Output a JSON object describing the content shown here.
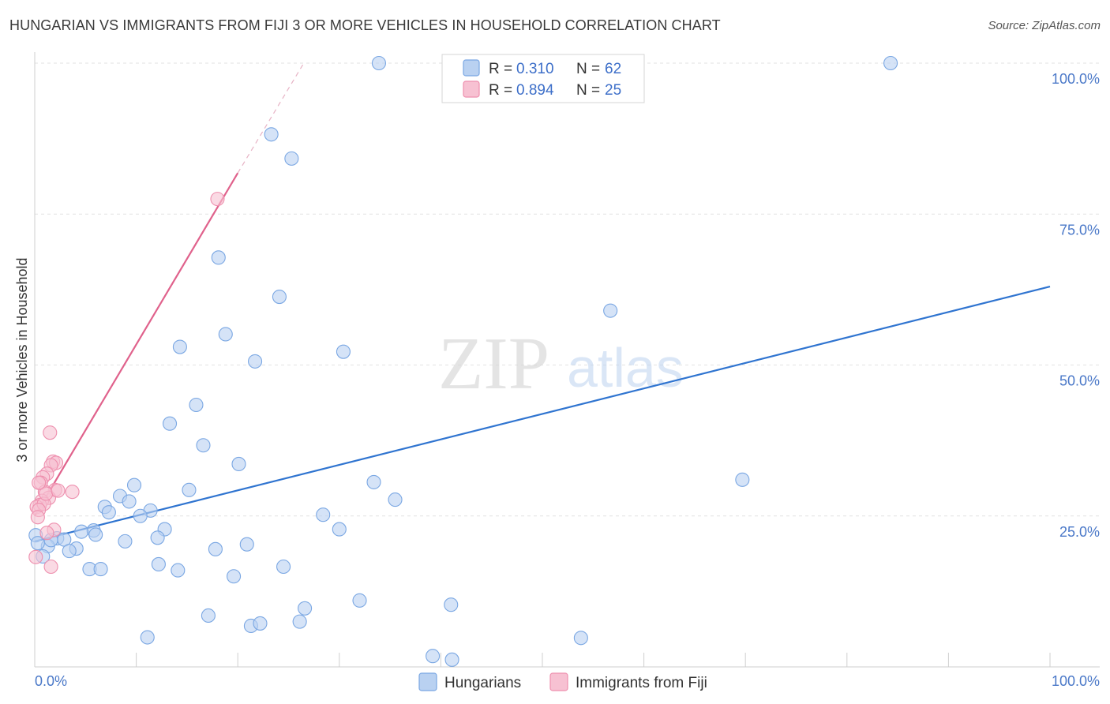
{
  "header": {
    "title": "HUNGARIAN VS IMMIGRANTS FROM FIJI 3 OR MORE VEHICLES IN HOUSEHOLD CORRELATION CHART",
    "source": "Source: ZipAtlas.com"
  },
  "watermark": {
    "zip": "ZIP",
    "atlas": "atlas"
  },
  "chart_data": {
    "type": "scatter",
    "title": "HUNGARIAN VS IMMIGRANTS FROM FIJI 3 OR MORE VEHICLES IN HOUSEHOLD CORRELATION CHART",
    "xlabel": "",
    "ylabel": "3 or more Vehicles in Household",
    "xlim": [
      0,
      1
    ],
    "ylim": [
      0,
      1
    ],
    "x_tick_labels": {
      "left": "0.0%",
      "right": "100.0%"
    },
    "y_ticks": [
      {
        "value": 0.25,
        "label": "25.0%"
      },
      {
        "value": 0.5,
        "label": "50.0%"
      },
      {
        "value": 0.75,
        "label": "75.0%"
      },
      {
        "value": 1.0,
        "label": "100.0%"
      }
    ],
    "grid": true,
    "legend": {
      "placement": "top-center",
      "entries": [
        {
          "r_label": "R =",
          "r_value": "0.310",
          "n_label": "N =",
          "n_value": "62"
        },
        {
          "r_label": "R =",
          "r_value": "0.894",
          "n_label": "N =",
          "n_value": "25"
        }
      ]
    },
    "series": [
      {
        "name": "Hungarians",
        "color": "#7aa7e3",
        "fill": "#b9d1f1",
        "trend_color": "#2f74d0",
        "trend": {
          "x0": 0.0,
          "y0": 0.208,
          "x1": 1.0,
          "y1": 0.63
        },
        "points": [
          [
            0.339,
            1.0
          ],
          [
            0.843,
            1.0
          ],
          [
            0.233,
            0.882
          ],
          [
            0.253,
            0.842
          ],
          [
            0.181,
            0.678
          ],
          [
            0.241,
            0.613
          ],
          [
            0.567,
            0.59
          ],
          [
            0.188,
            0.551
          ],
          [
            0.143,
            0.53
          ],
          [
            0.304,
            0.522
          ],
          [
            0.217,
            0.506
          ],
          [
            0.159,
            0.434
          ],
          [
            0.133,
            0.403
          ],
          [
            0.166,
            0.367
          ],
          [
            0.201,
            0.336
          ],
          [
            0.697,
            0.31
          ],
          [
            0.334,
            0.306
          ],
          [
            0.098,
            0.301
          ],
          [
            0.152,
            0.293
          ],
          [
            0.355,
            0.277
          ],
          [
            0.084,
            0.283
          ],
          [
            0.093,
            0.274
          ],
          [
            0.069,
            0.265
          ],
          [
            0.073,
            0.256
          ],
          [
            0.114,
            0.259
          ],
          [
            0.104,
            0.25
          ],
          [
            0.284,
            0.252
          ],
          [
            0.128,
            0.228
          ],
          [
            0.058,
            0.226
          ],
          [
            0.046,
            0.224
          ],
          [
            0.121,
            0.214
          ],
          [
            0.022,
            0.213
          ],
          [
            0.029,
            0.211
          ],
          [
            0.089,
            0.208
          ],
          [
            0.209,
            0.203
          ],
          [
            0.041,
            0.196
          ],
          [
            0.178,
            0.195
          ],
          [
            0.034,
            0.192
          ],
          [
            0.3,
            0.228
          ],
          [
            0.013,
            0.2
          ],
          [
            0.008,
            0.183
          ],
          [
            0.122,
            0.17
          ],
          [
            0.054,
            0.162
          ],
          [
            0.141,
            0.16
          ],
          [
            0.245,
            0.166
          ],
          [
            0.065,
            0.162
          ],
          [
            0.196,
            0.15
          ],
          [
            0.32,
            0.11
          ],
          [
            0.41,
            0.103
          ],
          [
            0.266,
            0.097
          ],
          [
            0.171,
            0.085
          ],
          [
            0.261,
            0.075
          ],
          [
            0.213,
            0.068
          ],
          [
            0.222,
            0.072
          ],
          [
            0.111,
            0.049
          ],
          [
            0.538,
            0.048
          ],
          [
            0.392,
            0.018
          ],
          [
            0.411,
            0.012
          ],
          [
            0.001,
            0.218
          ],
          [
            0.003,
            0.205
          ],
          [
            0.016,
            0.21
          ],
          [
            0.06,
            0.219
          ]
        ]
      },
      {
        "name": "Immigrants from Fiji",
        "color": "#ee8fae",
        "fill": "#f7c1d2",
        "trend_color": "#e0628c",
        "trend": {
          "x0": 0.0,
          "y0": 0.25,
          "x1": 0.2,
          "y1": 0.818
        },
        "trend_dashed": {
          "x0": 0.2,
          "y0": 0.818,
          "x1": 0.265,
          "y1": 1.0
        },
        "points": [
          [
            0.18,
            0.775
          ],
          [
            0.015,
            0.388
          ],
          [
            0.018,
            0.34
          ],
          [
            0.021,
            0.338
          ],
          [
            0.016,
            0.334
          ],
          [
            0.012,
            0.32
          ],
          [
            0.008,
            0.314
          ],
          [
            0.006,
            0.305
          ],
          [
            0.02,
            0.293
          ],
          [
            0.037,
            0.29
          ],
          [
            0.01,
            0.29
          ],
          [
            0.014,
            0.28
          ],
          [
            0.007,
            0.275
          ],
          [
            0.005,
            0.268
          ],
          [
            0.002,
            0.265
          ],
          [
            0.009,
            0.27
          ],
          [
            0.004,
            0.26
          ],
          [
            0.003,
            0.248
          ],
          [
            0.019,
            0.227
          ],
          [
            0.012,
            0.222
          ],
          [
            0.016,
            0.166
          ],
          [
            0.001,
            0.182
          ],
          [
            0.011,
            0.287
          ],
          [
            0.004,
            0.305
          ],
          [
            0.023,
            0.292
          ]
        ]
      }
    ]
  },
  "bottom_legend": {
    "items": [
      {
        "label": "Hungarians"
      },
      {
        "label": "Immigrants from Fiji"
      }
    ]
  }
}
